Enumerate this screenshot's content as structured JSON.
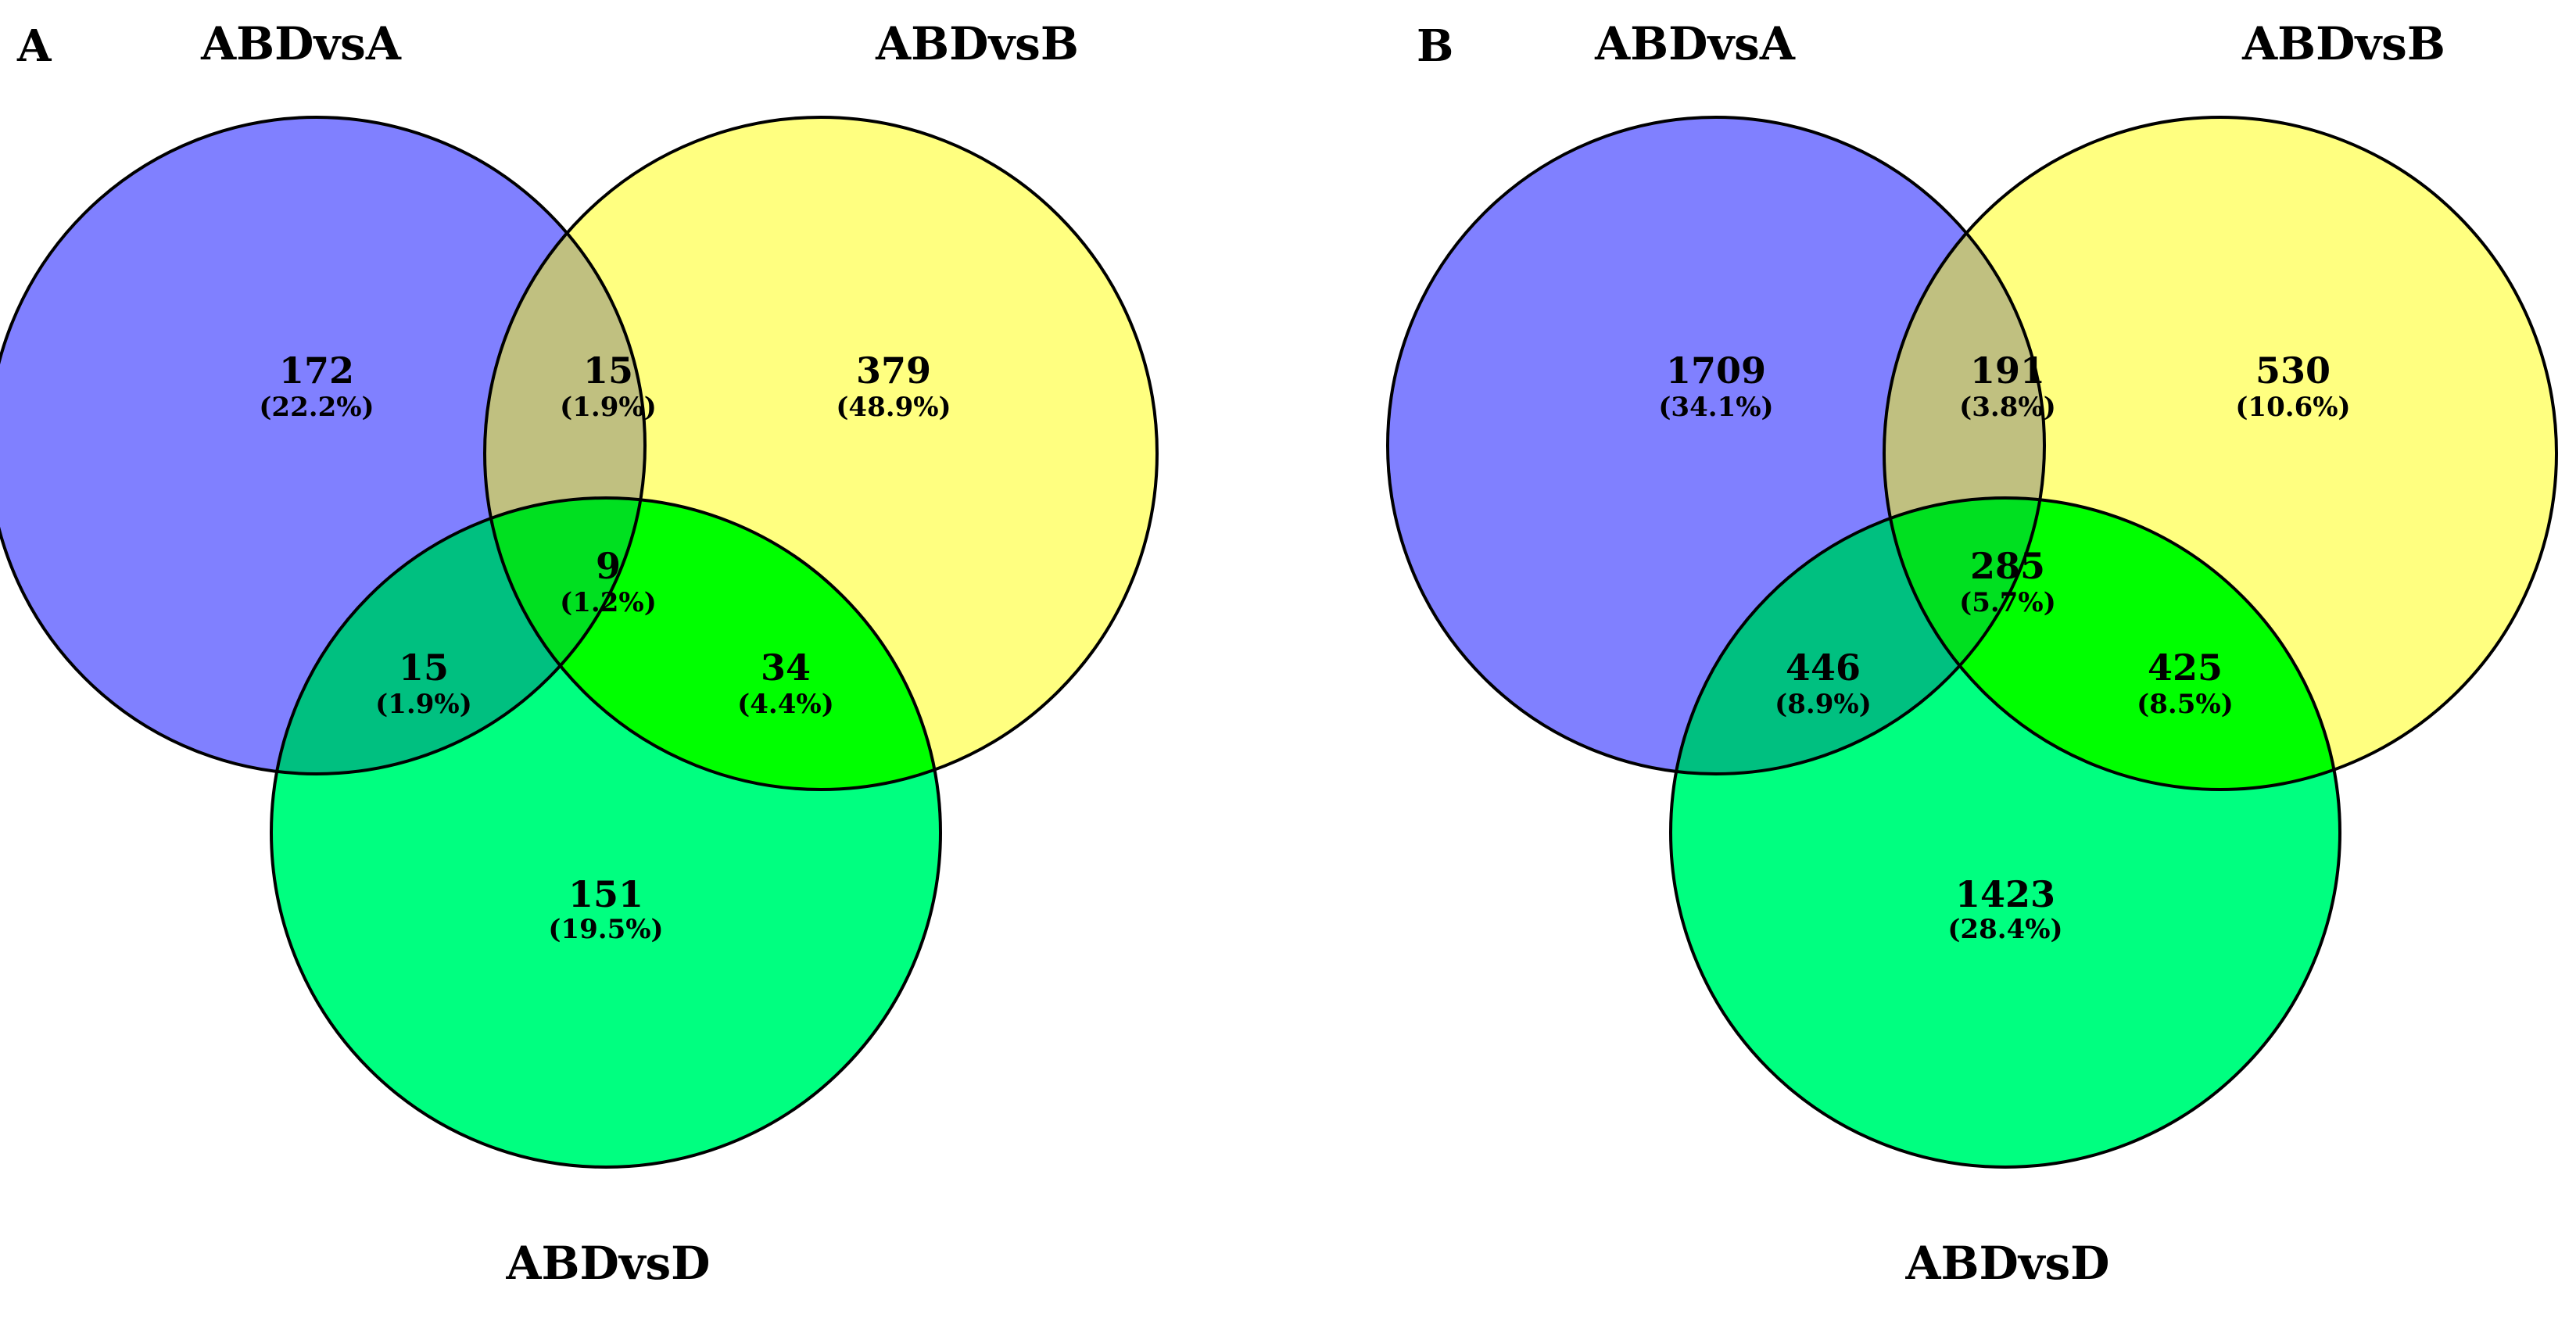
{
  "colors": {
    "set_a": "#8080ff",
    "set_b": "#ffff80",
    "set_d": "#00ff80",
    "a_and_b": "#c0c080",
    "a_and_d": "#00c080",
    "b_and_d": "#00ff00",
    "a_b_d": "#00e020"
  },
  "panels": [
    {
      "letter": "A",
      "sets": {
        "a": "ABDvsA",
        "b": "ABDvsB",
        "d": "ABDvsD"
      },
      "regions": {
        "a_only": {
          "count": "172",
          "pct": "(22.2%)"
        },
        "a_b": {
          "count": "15",
          "pct": "(1.9%)"
        },
        "b_only": {
          "count": "379",
          "pct": "(48.9%)"
        },
        "a_b_d": {
          "count": "9",
          "pct": "(1.2%)"
        },
        "a_d": {
          "count": "15",
          "pct": "(1.9%)"
        },
        "b_d": {
          "count": "34",
          "pct": "(4.4%)"
        },
        "d_only": {
          "count": "151",
          "pct": "(19.5%)"
        }
      }
    },
    {
      "letter": "B",
      "sets": {
        "a": "ABDvsA",
        "b": "ABDvsB",
        "d": "ABDvsD"
      },
      "regions": {
        "a_only": {
          "count": "1709",
          "pct": "(34.1%)"
        },
        "a_b": {
          "count": "191",
          "pct": "(3.8%)"
        },
        "b_only": {
          "count": "530",
          "pct": "(10.6%)"
        },
        "a_b_d": {
          "count": "285",
          "pct": "(5.7%)"
        },
        "a_d": {
          "count": "446",
          "pct": "(8.9%)"
        },
        "b_d": {
          "count": "425",
          "pct": "(8.5%)"
        },
        "d_only": {
          "count": "1423",
          "pct": "(28.4%)"
        }
      }
    }
  ]
}
